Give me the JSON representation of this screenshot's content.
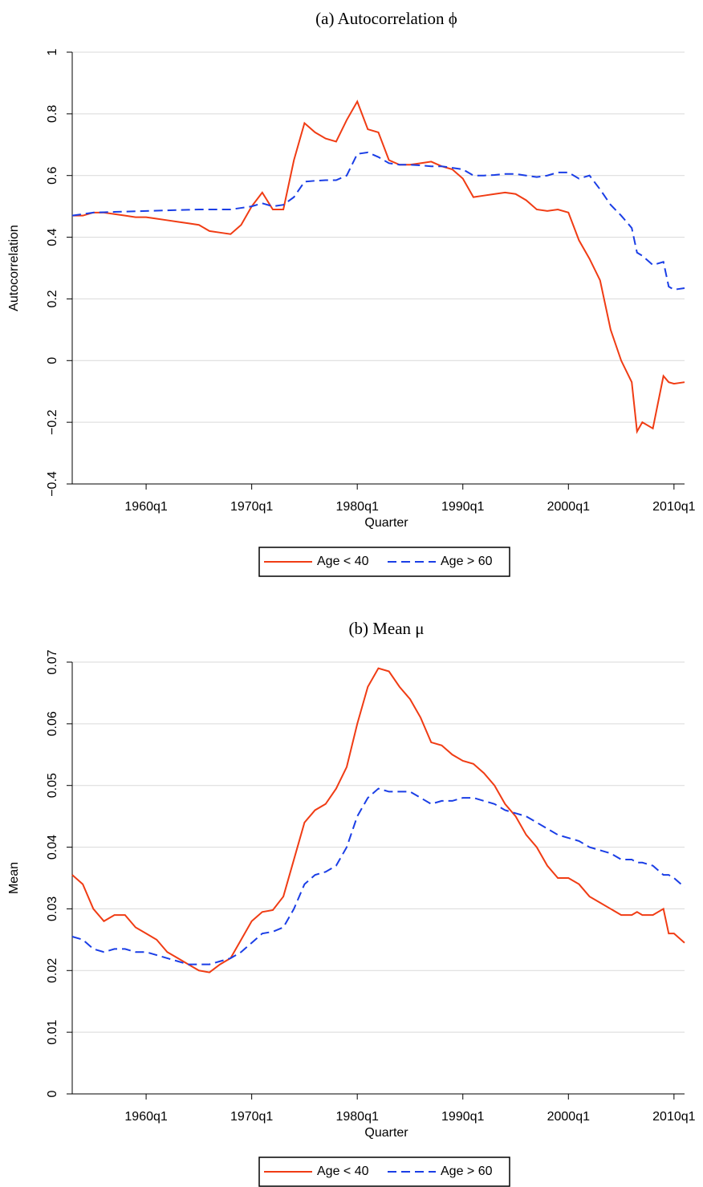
{
  "chart_data": [
    {
      "type": "line",
      "title": "(a) Autocorrelation ϕ",
      "xlabel": "Quarter",
      "ylabel": "Autocorrelation",
      "x": [
        1953,
        1954,
        1955,
        1956,
        1957,
        1958,
        1959,
        1960,
        1961,
        1962,
        1963,
        1964,
        1965,
        1966,
        1967,
        1968,
        1969,
        1970,
        1971,
        1972,
        1973,
        1974,
        1975,
        1976,
        1977,
        1978,
        1979,
        1980,
        1981,
        1982,
        1983,
        1984,
        1985,
        1986,
        1987,
        1988,
        1989,
        1990,
        1991,
        1992,
        1993,
        1994,
        1995,
        1996,
        1997,
        1998,
        1999,
        2000,
        2001,
        2002,
        2003,
        2004,
        2005,
        2006,
        2006.5,
        2007,
        2008,
        2009,
        2009.5,
        2010,
        2011
      ],
      "series": [
        {
          "name": "Age < 40",
          "color": "#f03c14",
          "linestyle": "solid",
          "values": [
            0.47,
            0.47,
            0.48,
            0.48,
            0.475,
            0.47,
            0.465,
            0.465,
            0.46,
            0.455,
            0.45,
            0.445,
            0.44,
            0.42,
            0.415,
            0.41,
            0.44,
            0.5,
            0.545,
            0.49,
            0.49,
            0.65,
            0.77,
            0.74,
            0.72,
            0.71,
            0.78,
            0.84,
            0.75,
            0.74,
            0.65,
            0.635,
            0.635,
            0.64,
            0.645,
            0.63,
            0.62,
            0.59,
            0.53,
            0.535,
            0.54,
            0.545,
            0.54,
            0.52,
            0.49,
            0.485,
            0.49,
            0.48,
            0.39,
            0.33,
            0.26,
            0.1,
            0,
            -0.07,
            -0.23,
            -0.2,
            -0.22,
            -0.05,
            -0.07,
            -0.075,
            -0.07
          ]
        },
        {
          "name": "Age > 60",
          "color": "#1a3ee6",
          "linestyle": "dashed",
          "values": [
            0.47,
            0.475,
            0.48,
            0.481,
            0.482,
            0.483,
            0.484,
            0.485,
            0.486,
            0.487,
            0.488,
            0.489,
            0.49,
            0.49,
            0.49,
            0.49,
            0.495,
            0.5,
            0.51,
            0.5,
            0.505,
            0.53,
            0.58,
            0.583,
            0.585,
            0.585,
            0.6,
            0.67,
            0.675,
            0.66,
            0.64,
            0.635,
            0.635,
            0.633,
            0.63,
            0.63,
            0.625,
            0.62,
            0.6,
            0.6,
            0.602,
            0.605,
            0.605,
            0.6,
            0.595,
            0.6,
            0.61,
            0.61,
            0.59,
            0.6,
            0.555,
            0.505,
            0.47,
            0.43,
            0.35,
            0.34,
            0.31,
            0.32,
            0.24,
            0.23,
            0.235
          ]
        }
      ],
      "xlim": [
        1953,
        2011
      ],
      "xticks": [
        {
          "value": 1960,
          "label": "1960q1"
        },
        {
          "value": 1970,
          "label": "1970q1"
        },
        {
          "value": 1980,
          "label": "1980q1"
        },
        {
          "value": 1990,
          "label": "1990q1"
        },
        {
          "value": 2000,
          "label": "2000q1"
        },
        {
          "value": 2010,
          "label": "2010q1"
        }
      ],
      "ylim": [
        -0.4,
        1
      ],
      "yticks": [
        {
          "value": -0.4,
          "label": "−0.4"
        },
        {
          "value": -0.2,
          "label": "−0.2"
        },
        0,
        0.2,
        0.4,
        0.6,
        0.8,
        1
      ],
      "grid": true,
      "legend": "bottom"
    },
    {
      "type": "line",
      "title": "(b) Mean μ",
      "xlabel": "Quarter",
      "ylabel": "Mean",
      "x": [
        1953,
        1954,
        1955,
        1956,
        1957,
        1958,
        1959,
        1960,
        1961,
        1962,
        1963,
        1964,
        1965,
        1966,
        1967,
        1968,
        1969,
        1970,
        1971,
        1972,
        1973,
        1974,
        1975,
        1976,
        1977,
        1978,
        1979,
        1980,
        1981,
        1982,
        1983,
        1984,
        1985,
        1986,
        1987,
        1988,
        1989,
        1990,
        1991,
        1992,
        1993,
        1994,
        1995,
        1996,
        1997,
        1998,
        1999,
        2000,
        2001,
        2002,
        2003,
        2004,
        2005,
        2006,
        2006.5,
        2007,
        2008,
        2009,
        2009.5,
        2010,
        2011
      ],
      "series": [
        {
          "name": "Age < 40",
          "color": "#f03c14",
          "linestyle": "solid",
          "values": [
            0.0355,
            0.034,
            0.03,
            0.028,
            0.029,
            0.029,
            0.027,
            0.026,
            0.025,
            0.023,
            0.022,
            0.021,
            0.02,
            0.0197,
            0.021,
            0.022,
            0.025,
            0.028,
            0.0295,
            0.0298,
            0.032,
            0.038,
            0.044,
            0.046,
            0.047,
            0.0495,
            0.053,
            0.06,
            0.066,
            0.069,
            0.0685,
            0.066,
            0.064,
            0.061,
            0.057,
            0.0565,
            0.055,
            0.054,
            0.0535,
            0.052,
            0.05,
            0.047,
            0.045,
            0.042,
            0.04,
            0.037,
            0.035,
            0.035,
            0.034,
            0.032,
            0.031,
            0.03,
            0.029,
            0.029,
            0.0295,
            0.029,
            0.029,
            0.03,
            0.026,
            0.026,
            0.0245
          ]
        },
        {
          "name": "Age > 60",
          "color": "#1a3ee6",
          "linestyle": "dashed",
          "values": [
            0.0255,
            0.025,
            0.0235,
            0.023,
            0.0235,
            0.0235,
            0.023,
            0.023,
            0.0225,
            0.022,
            0.0215,
            0.021,
            0.021,
            0.021,
            0.0215,
            0.022,
            0.023,
            0.0245,
            0.026,
            0.0263,
            0.027,
            0.03,
            0.034,
            0.0355,
            0.036,
            0.037,
            0.04,
            0.045,
            0.048,
            0.0495,
            0.049,
            0.049,
            0.049,
            0.048,
            0.047,
            0.0475,
            0.0475,
            0.048,
            0.048,
            0.0475,
            0.047,
            0.046,
            0.0455,
            0.045,
            0.044,
            0.043,
            0.042,
            0.0415,
            0.041,
            0.04,
            0.0395,
            0.039,
            0.038,
            0.038,
            0.0375,
            0.0375,
            0.037,
            0.0355,
            0.0355,
            0.035,
            0.0335
          ]
        }
      ],
      "xlim": [
        1953,
        2011
      ],
      "xticks": [
        {
          "value": 1960,
          "label": "1960q1"
        },
        {
          "value": 1970,
          "label": "1970q1"
        },
        {
          "value": 1980,
          "label": "1980q1"
        },
        {
          "value": 1990,
          "label": "1990q1"
        },
        {
          "value": 2000,
          "label": "2000q1"
        },
        {
          "value": 2010,
          "label": "2010q1"
        }
      ],
      "ylim": [
        0,
        0.07
      ],
      "yticks": [
        0,
        0.01,
        0.02,
        0.03,
        0.04,
        0.05,
        0.06,
        0.07
      ],
      "grid": true,
      "legend": "bottom"
    }
  ]
}
